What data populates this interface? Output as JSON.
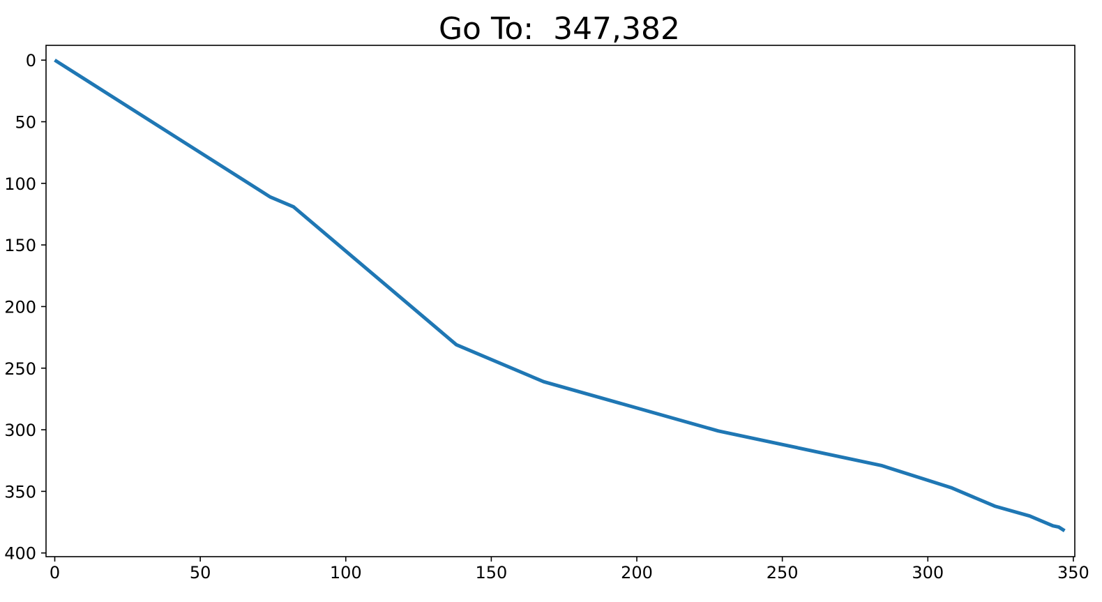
{
  "chart_data": {
    "type": "line",
    "title": "Go To:  347,382",
    "xlabel": "",
    "ylabel": "",
    "xlim": [
      -3,
      350.5
    ],
    "ylim": [
      -12,
      403
    ],
    "y_inverted": true,
    "grid": false,
    "legend": "none",
    "xticks": [
      0,
      50,
      100,
      150,
      200,
      250,
      300,
      350
    ],
    "xtick_labels": [
      "0",
      "50",
      "100",
      "150",
      "200",
      "250",
      "300",
      "350"
    ],
    "yticks": [
      0,
      50,
      100,
      150,
      200,
      250,
      300,
      350,
      400
    ],
    "ytick_labels": [
      "0",
      "50",
      "100",
      "150",
      "200",
      "250",
      "300",
      "350",
      "400"
    ],
    "series": [
      {
        "color": "#1f77b4",
        "x": [
          0,
          74,
          82,
          138,
          168,
          228,
          284,
          308,
          323,
          335,
          343,
          345,
          347
        ],
        "y": [
          0,
          111,
          119,
          231,
          261,
          301,
          329,
          347,
          362,
          370,
          378,
          379,
          382
        ]
      }
    ]
  }
}
